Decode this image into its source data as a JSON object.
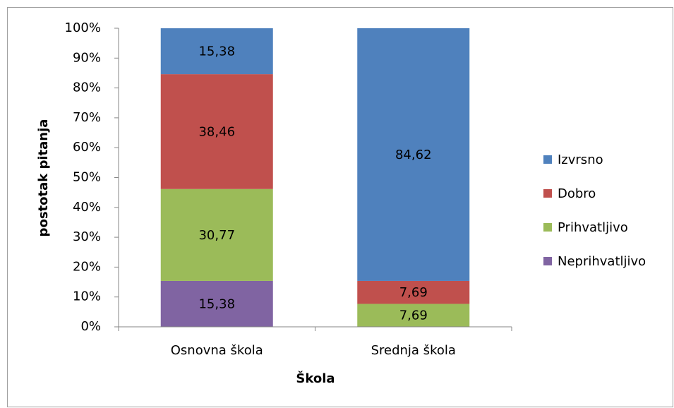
{
  "chart_data": {
    "type": "stacked_bar",
    "x_label": "Škola",
    "y_label": "postotak pitanja",
    "categories": [
      "Osnovna škola",
      "Srednja škola"
    ],
    "series": [
      {
        "name": "Neprihvatljivo",
        "color": "#8064a2",
        "values": [
          15.38,
          0
        ],
        "value_labels": [
          "15,38",
          null
        ]
      },
      {
        "name": "Prihvatljivo",
        "color": "#9bbb59",
        "values": [
          30.77,
          7.69
        ],
        "value_labels": [
          "30,77",
          "7,69"
        ]
      },
      {
        "name": "Dobro",
        "color": "#c0504d",
        "values": [
          38.46,
          7.69
        ],
        "value_labels": [
          "38,46",
          "7,69"
        ]
      },
      {
        "name": "Izvrsno",
        "color": "#4f81bd",
        "values": [
          15.38,
          84.62
        ],
        "value_labels": [
          "15,38",
          "84,62"
        ]
      }
    ],
    "ylim": [
      0,
      100
    ],
    "yticks": [
      {
        "value": 0,
        "label": "0%"
      },
      {
        "value": 10,
        "label": "10%"
      },
      {
        "value": 20,
        "label": "20%"
      },
      {
        "value": 30,
        "label": "30%"
      },
      {
        "value": 40,
        "label": "40%"
      },
      {
        "value": 50,
        "label": "50%"
      },
      {
        "value": 60,
        "label": "60%"
      },
      {
        "value": 70,
        "label": "70%"
      },
      {
        "value": 80,
        "label": "80%"
      },
      {
        "value": 90,
        "label": "90%"
      },
      {
        "value": 100,
        "label": "100%"
      }
    ],
    "legend": "right"
  }
}
